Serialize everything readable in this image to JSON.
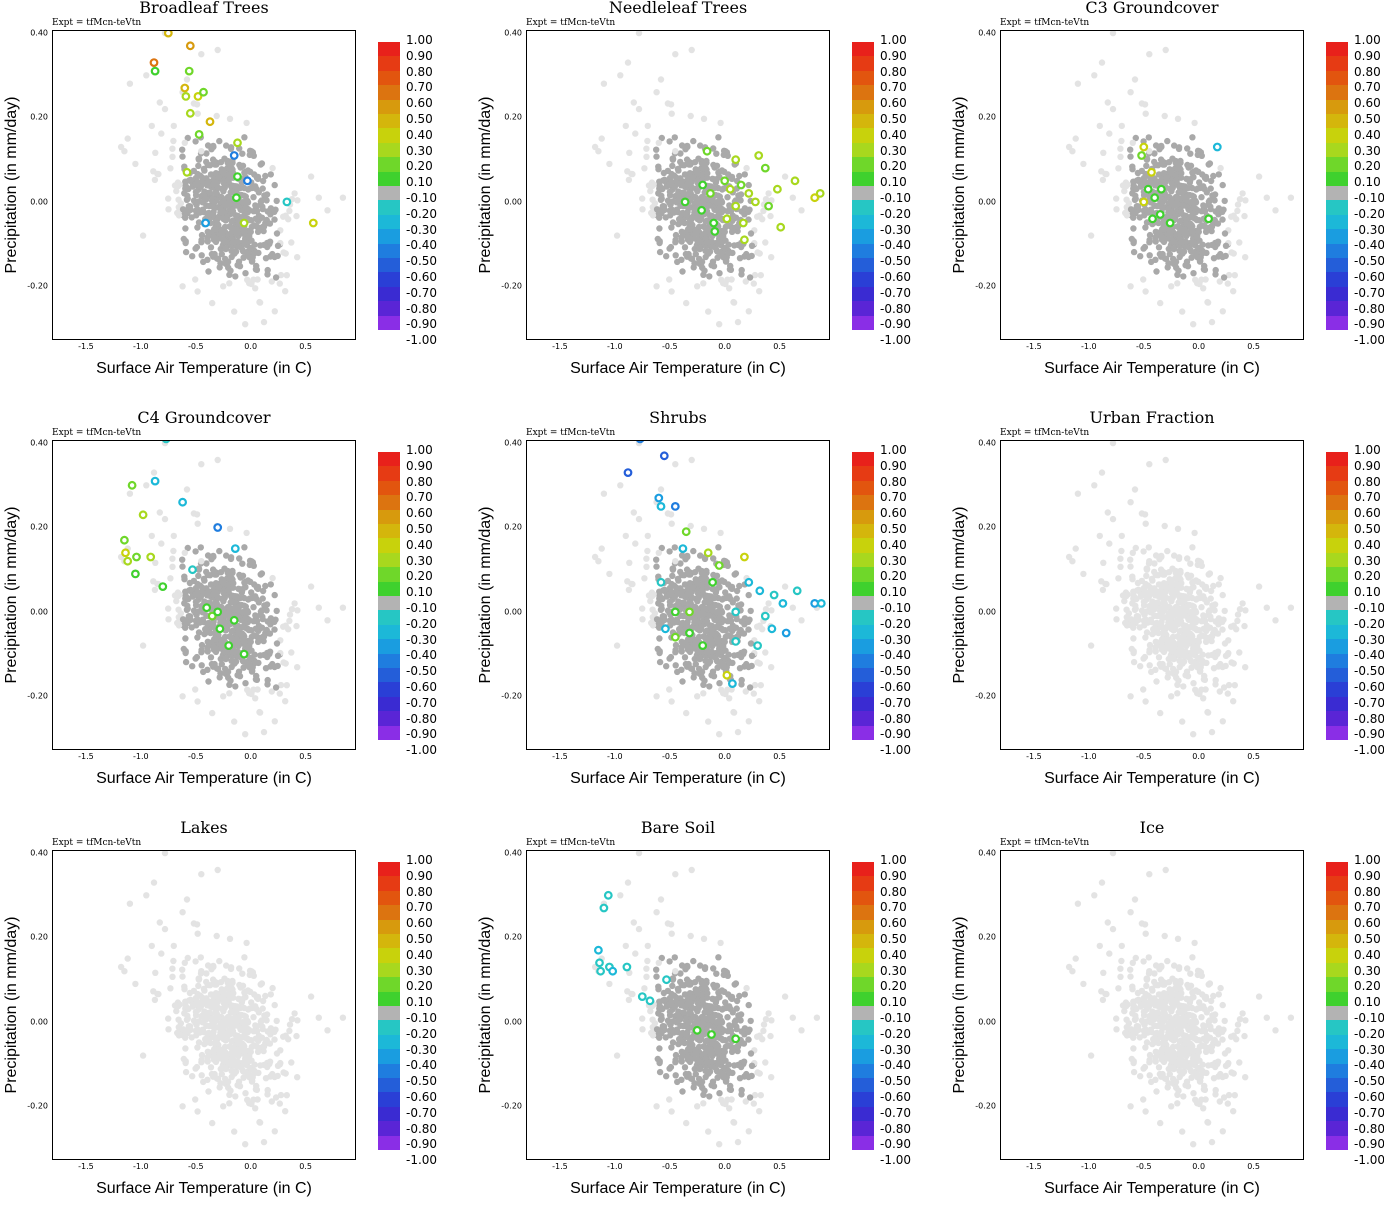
{
  "figure": {
    "expt_label": "Expt = tfMcn-teVtn",
    "xlabel": "Surface Air Temperature (in C)",
    "ylabel": "Precipitation (in mm/day)",
    "xticks": [
      "-1.5",
      "-1.0",
      "-0.5",
      "0.0",
      "0.5"
    ],
    "yticks": [
      "0.40",
      "0.20",
      "0.00",
      "-0.20"
    ],
    "colorbar": {
      "labels": [
        "1.00",
        "0.90",
        "0.80",
        "0.70",
        "0.60",
        "0.50",
        "0.40",
        "0.30",
        "0.20",
        "0.10",
        "-0.10",
        "-0.20",
        "-0.30",
        "-0.40",
        "-0.50",
        "-0.60",
        "-0.70",
        "-0.80",
        "-0.90",
        "-1.00"
      ],
      "colors": [
        "#e8211b",
        "#e63b14",
        "#e2550f",
        "#dc7410",
        "#d79a0d",
        "#d4b60c",
        "#c8d20c",
        "#a8d81e",
        "#6fd72a",
        "#3fd12e",
        "#b3b3b3",
        "#26c6c4",
        "#1cb8d8",
        "#1a9de0",
        "#1f7ddf",
        "#245ed9",
        "#2a3fd6",
        "#3a2bd2",
        "#5a25d6",
        "#8a2ee6"
      ]
    }
  },
  "panels": [
    {
      "title": "Broadleaf Trees"
    },
    {
      "title": "Needleleaf Trees"
    },
    {
      "title": "C3 Groundcover"
    },
    {
      "title": "C4 Groundcover"
    },
    {
      "title": "Shrubs"
    },
    {
      "title": "Urban Fraction"
    },
    {
      "title": "Lakes"
    },
    {
      "title": "Bare Soil"
    },
    {
      "title": "Ice"
    }
  ],
  "chart_data": [
    {
      "type": "scatter",
      "title": "Broadleaf Trees",
      "xlabel": "Surface Air Temperature (in C)",
      "ylabel": "Precipitation (in mm/day)",
      "xlim": [
        -1.8,
        0.95
      ],
      "ylim": [
        -0.325,
        0.405
      ],
      "colored_points": [
        {
          "x": -0.75,
          "y": 0.4,
          "v": 0.5
        },
        {
          "x": -0.88,
          "y": 0.33,
          "v": 0.7
        },
        {
          "x": -0.87,
          "y": 0.31,
          "v": 0.15
        },
        {
          "x": -0.55,
          "y": 0.37,
          "v": 0.6
        },
        {
          "x": -0.56,
          "y": 0.31,
          "v": 0.2
        },
        {
          "x": -0.6,
          "y": 0.27,
          "v": 0.5
        },
        {
          "x": -0.59,
          "y": 0.25,
          "v": 0.3
        },
        {
          "x": -0.48,
          "y": 0.25,
          "v": 0.4
        },
        {
          "x": -0.43,
          "y": 0.26,
          "v": 0.2
        },
        {
          "x": -0.55,
          "y": 0.21,
          "v": 0.3
        },
        {
          "x": -0.47,
          "y": 0.16,
          "v": 0.2
        },
        {
          "x": -0.37,
          "y": 0.19,
          "v": 0.5
        },
        {
          "x": -0.12,
          "y": 0.14,
          "v": 0.3
        },
        {
          "x": -0.15,
          "y": 0.11,
          "v": -0.5
        },
        {
          "x": -0.58,
          "y": 0.07,
          "v": 0.3
        },
        {
          "x": -0.12,
          "y": 0.06,
          "v": 0.15
        },
        {
          "x": -0.03,
          "y": 0.05,
          "v": -0.5
        },
        {
          "x": -0.13,
          "y": 0.01,
          "v": 0.15
        },
        {
          "x": 0.33,
          "y": 0.0,
          "v": -0.2
        },
        {
          "x": -0.41,
          "y": -0.05,
          "v": -0.4
        },
        {
          "x": -0.06,
          "y": -0.05,
          "v": 0.3
        },
        {
          "x": 0.57,
          "y": -0.05,
          "v": 0.4
        }
      ]
    },
    {
      "type": "scatter",
      "title": "Needleleaf Trees",
      "xlabel": "Surface Air Temperature (in C)",
      "ylabel": "Precipitation (in mm/day)",
      "xlim": [
        -1.8,
        0.95
      ],
      "ylim": [
        -0.325,
        0.405
      ],
      "colored_points": [
        {
          "x": -0.16,
          "y": 0.12,
          "v": 0.2
        },
        {
          "x": 0.1,
          "y": 0.1,
          "v": 0.3
        },
        {
          "x": 0.31,
          "y": 0.11,
          "v": 0.3
        },
        {
          "x": 0.37,
          "y": 0.08,
          "v": 0.2
        },
        {
          "x": 0.64,
          "y": 0.05,
          "v": 0.3
        },
        {
          "x": 0.87,
          "y": 0.02,
          "v": 0.3
        },
        {
          "x": 0.82,
          "y": 0.01,
          "v": 0.4
        },
        {
          "x": -0.2,
          "y": 0.04,
          "v": 0.15
        },
        {
          "x": -0.13,
          "y": 0.02,
          "v": 0.2
        },
        {
          "x": 0.0,
          "y": 0.05,
          "v": 0.25
        },
        {
          "x": 0.05,
          "y": 0.03,
          "v": 0.3
        },
        {
          "x": 0.15,
          "y": 0.04,
          "v": 0.2
        },
        {
          "x": 0.22,
          "y": 0.02,
          "v": 0.3
        },
        {
          "x": 0.28,
          "y": 0.0,
          "v": 0.3
        },
        {
          "x": 0.4,
          "y": -0.01,
          "v": 0.2
        },
        {
          "x": 0.48,
          "y": 0.03,
          "v": 0.3
        },
        {
          "x": -0.36,
          "y": 0.0,
          "v": 0.15
        },
        {
          "x": -0.21,
          "y": -0.02,
          "v": 0.15
        },
        {
          "x": 0.1,
          "y": -0.01,
          "v": 0.3
        },
        {
          "x": -0.1,
          "y": -0.05,
          "v": 0.15
        },
        {
          "x": 0.02,
          "y": -0.04,
          "v": 0.3
        },
        {
          "x": 0.17,
          "y": -0.05,
          "v": 0.3
        },
        {
          "x": -0.09,
          "y": -0.07,
          "v": 0.15
        },
        {
          "x": 0.18,
          "y": -0.09,
          "v": 0.3
        },
        {
          "x": 0.51,
          "y": -0.06,
          "v": 0.3
        }
      ]
    },
    {
      "type": "scatter",
      "title": "C3 Groundcover",
      "xlabel": "Surface Air Temperature (in C)",
      "ylabel": "Precipitation (in mm/day)",
      "xlim": [
        -1.8,
        0.95
      ],
      "ylim": [
        -0.325,
        0.405
      ],
      "colored_points": [
        {
          "x": -0.5,
          "y": 0.13,
          "v": 0.4
        },
        {
          "x": 0.17,
          "y": 0.13,
          "v": -0.3
        },
        {
          "x": -0.52,
          "y": 0.11,
          "v": 0.2
        },
        {
          "x": -0.43,
          "y": 0.07,
          "v": 0.4
        },
        {
          "x": -0.46,
          "y": 0.03,
          "v": 0.15
        },
        {
          "x": -0.4,
          "y": 0.01,
          "v": 0.15
        },
        {
          "x": -0.5,
          "y": 0.0,
          "v": 0.4
        },
        {
          "x": -0.34,
          "y": 0.03,
          "v": 0.15
        },
        {
          "x": -0.42,
          "y": -0.04,
          "v": 0.15
        },
        {
          "x": -0.35,
          "y": -0.03,
          "v": 0.15
        },
        {
          "x": -0.26,
          "y": -0.05,
          "v": 0.15
        },
        {
          "x": 0.09,
          "y": -0.04,
          "v": 0.15
        }
      ]
    },
    {
      "type": "scatter",
      "title": "C4 Groundcover",
      "xlabel": "Surface Air Temperature (in C)",
      "ylabel": "Precipitation (in mm/day)",
      "xlim": [
        -1.8,
        0.95
      ],
      "ylim": [
        -0.325,
        0.405
      ],
      "colored_points": [
        {
          "x": -0.77,
          "y": 0.41,
          "v": -0.25
        },
        {
          "x": -1.08,
          "y": 0.3,
          "v": 0.2
        },
        {
          "x": -0.87,
          "y": 0.31,
          "v": -0.3
        },
        {
          "x": -0.98,
          "y": 0.23,
          "v": 0.3
        },
        {
          "x": -1.15,
          "y": 0.17,
          "v": 0.2
        },
        {
          "x": -1.14,
          "y": 0.14,
          "v": 0.4
        },
        {
          "x": -1.12,
          "y": 0.12,
          "v": 0.3
        },
        {
          "x": -1.04,
          "y": 0.13,
          "v": 0.2
        },
        {
          "x": -0.91,
          "y": 0.13,
          "v": 0.3
        },
        {
          "x": -1.05,
          "y": 0.09,
          "v": 0.15
        },
        {
          "x": -0.62,
          "y": 0.26,
          "v": -0.3
        },
        {
          "x": -0.3,
          "y": 0.2,
          "v": -0.5
        },
        {
          "x": -0.14,
          "y": 0.15,
          "v": -0.3
        },
        {
          "x": -0.53,
          "y": 0.1,
          "v": -0.25
        },
        {
          "x": -0.8,
          "y": 0.06,
          "v": 0.15
        },
        {
          "x": -0.4,
          "y": 0.01,
          "v": 0.15
        },
        {
          "x": -0.35,
          "y": -0.01,
          "v": 0.2
        },
        {
          "x": -0.3,
          "y": 0.0,
          "v": 0.15
        },
        {
          "x": -0.15,
          "y": -0.02,
          "v": 0.15
        },
        {
          "x": -0.28,
          "y": -0.04,
          "v": 0.15
        },
        {
          "x": -0.2,
          "y": -0.08,
          "v": 0.15
        },
        {
          "x": -0.06,
          "y": -0.1,
          "v": 0.15
        }
      ]
    },
    {
      "type": "scatter",
      "title": "Shrubs",
      "xlabel": "Surface Air Temperature (in C)",
      "ylabel": "Precipitation (in mm/day)",
      "xlim": [
        -1.8,
        0.95
      ],
      "ylim": [
        -0.325,
        0.405
      ],
      "colored_points": [
        {
          "x": -0.77,
          "y": 0.41,
          "v": -0.5
        },
        {
          "x": -0.88,
          "y": 0.33,
          "v": -0.55
        },
        {
          "x": -0.55,
          "y": 0.37,
          "v": -0.6
        },
        {
          "x": -0.6,
          "y": 0.27,
          "v": -0.45
        },
        {
          "x": -0.58,
          "y": 0.25,
          "v": -0.3
        },
        {
          "x": -0.45,
          "y": 0.25,
          "v": -0.5
        },
        {
          "x": -0.35,
          "y": 0.19,
          "v": 0.2
        },
        {
          "x": -0.38,
          "y": 0.15,
          "v": -0.3
        },
        {
          "x": -0.15,
          "y": 0.14,
          "v": 0.3
        },
        {
          "x": 0.18,
          "y": 0.13,
          "v": 0.4
        },
        {
          "x": -0.05,
          "y": 0.11,
          "v": 0.2
        },
        {
          "x": -0.58,
          "y": 0.07,
          "v": -0.25
        },
        {
          "x": -0.11,
          "y": 0.07,
          "v": 0.15
        },
        {
          "x": 0.22,
          "y": 0.07,
          "v": -0.3
        },
        {
          "x": 0.32,
          "y": 0.05,
          "v": -0.35
        },
        {
          "x": 0.45,
          "y": 0.04,
          "v": -0.25
        },
        {
          "x": 0.53,
          "y": 0.02,
          "v": -0.3
        },
        {
          "x": 0.66,
          "y": 0.05,
          "v": -0.25
        },
        {
          "x": 0.82,
          "y": 0.02,
          "v": -0.4
        },
        {
          "x": 0.88,
          "y": 0.02,
          "v": -0.3
        },
        {
          "x": -0.45,
          "y": 0.0,
          "v": 0.15
        },
        {
          "x": -0.32,
          "y": 0.0,
          "v": 0.2
        },
        {
          "x": 0.1,
          "y": 0.0,
          "v": -0.25
        },
        {
          "x": 0.37,
          "y": -0.01,
          "v": -0.25
        },
        {
          "x": -0.54,
          "y": -0.04,
          "v": -0.3
        },
        {
          "x": 0.43,
          "y": -0.04,
          "v": -0.3
        },
        {
          "x": 0.56,
          "y": -0.05,
          "v": -0.4
        },
        {
          "x": -0.45,
          "y": -0.06,
          "v": 0.2
        },
        {
          "x": -0.32,
          "y": -0.05,
          "v": 0.15
        },
        {
          "x": -0.2,
          "y": -0.08,
          "v": 0.15
        },
        {
          "x": 0.1,
          "y": -0.07,
          "v": -0.25
        },
        {
          "x": 0.3,
          "y": -0.08,
          "v": -0.25
        },
        {
          "x": 0.02,
          "y": -0.15,
          "v": 0.4
        },
        {
          "x": 0.07,
          "y": -0.17,
          "v": -0.3
        }
      ]
    },
    {
      "type": "scatter",
      "title": "Urban Fraction",
      "xlabel": "Surface Air Temperature (in C)",
      "ylabel": "Precipitation (in mm/day)",
      "xlim": [
        -1.8,
        0.95
      ],
      "ylim": [
        -0.325,
        0.405
      ],
      "colored_points": []
    },
    {
      "type": "scatter",
      "title": "Lakes",
      "xlabel": "Surface Air Temperature (in C)",
      "ylabel": "Precipitation (in mm/day)",
      "xlim": [
        -1.8,
        0.95
      ],
      "ylim": [
        -0.325,
        0.405
      ],
      "colored_points": []
    },
    {
      "type": "scatter",
      "title": "Bare Soil",
      "xlabel": "Surface Air Temperature (in C)",
      "ylabel": "Precipitation (in mm/day)",
      "xlim": [
        -1.8,
        0.95
      ],
      "ylim": [
        -0.325,
        0.405
      ],
      "colored_points": [
        {
          "x": -1.06,
          "y": 0.3,
          "v": -0.25
        },
        {
          "x": -1.1,
          "y": 0.27,
          "v": -0.25
        },
        {
          "x": -1.15,
          "y": 0.17,
          "v": -0.3
        },
        {
          "x": -1.14,
          "y": 0.14,
          "v": -0.25
        },
        {
          "x": -1.13,
          "y": 0.12,
          "v": -0.25
        },
        {
          "x": -1.05,
          "y": 0.13,
          "v": -0.25
        },
        {
          "x": -1.02,
          "y": 0.12,
          "v": -0.3
        },
        {
          "x": -0.89,
          "y": 0.13,
          "v": -0.25
        },
        {
          "x": -0.53,
          "y": 0.1,
          "v": -0.25
        },
        {
          "x": -0.75,
          "y": 0.06,
          "v": -0.25
        },
        {
          "x": -0.68,
          "y": 0.05,
          "v": -0.25
        },
        {
          "x": -0.25,
          "y": -0.02,
          "v": 0.15
        },
        {
          "x": -0.12,
          "y": -0.03,
          "v": 0.15
        },
        {
          "x": 0.1,
          "y": -0.04,
          "v": 0.15
        }
      ]
    },
    {
      "type": "scatter",
      "title": "Ice",
      "xlabel": "Surface Air Temperature (in C)",
      "ylabel": "Precipitation (in mm/day)",
      "xlim": [
        -1.8,
        0.95
      ],
      "ylim": [
        -0.325,
        0.405
      ],
      "colored_points": []
    }
  ]
}
